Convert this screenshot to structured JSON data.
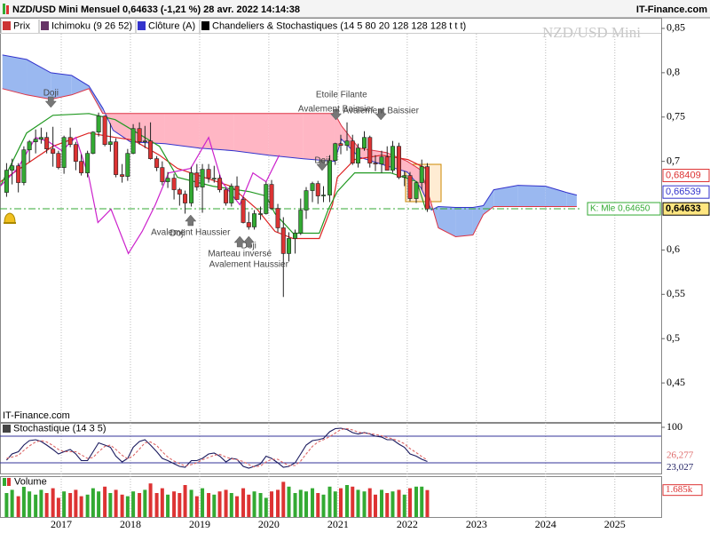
{
  "chart_data": [
    {
      "type": "candlestick",
      "title": "NZD/USD Mini Mensuel 0,64633 (-1,21 %) 28 avr. 2022 14:14:38",
      "source": "IT-Finance.com",
      "watermark": "NZD/USD Mini",
      "legend": [
        {
          "name": "Prix",
          "color": "#cc3333"
        },
        {
          "name": "Ichimoku (9 26 52)",
          "color": "#663366"
        },
        {
          "name": "Clôture (A)",
          "color": "#3333cc"
        },
        {
          "name": "Chandeliers & Stochastiques (14 5 80 20 128 128 128 t t t)",
          "color": "#000000"
        }
      ],
      "x": [
        2016.21,
        2016.29,
        2016.38,
        2016.46,
        2016.54,
        2016.63,
        2016.71,
        2016.79,
        2016.88,
        2016.96,
        2017.04,
        2017.13,
        2017.21,
        2017.29,
        2017.38,
        2017.46,
        2017.54,
        2017.63,
        2017.71,
        2017.79,
        2017.88,
        2017.96,
        2018.04,
        2018.13,
        2018.21,
        2018.29,
        2018.38,
        2018.46,
        2018.54,
        2018.63,
        2018.71,
        2018.79,
        2018.88,
        2018.96,
        2019.04,
        2019.13,
        2019.21,
        2019.29,
        2019.38,
        2019.46,
        2019.54,
        2019.63,
        2019.71,
        2019.79,
        2019.88,
        2019.96,
        2020.04,
        2020.13,
        2020.21,
        2020.29,
        2020.38,
        2020.46,
        2020.54,
        2020.63,
        2020.71,
        2020.79,
        2020.88,
        2020.96,
        2021.04,
        2021.13,
        2021.21,
        2021.29,
        2021.38,
        2021.46,
        2021.54,
        2021.63,
        2021.71,
        2021.79,
        2021.88,
        2021.96,
        2022.04,
        2022.13,
        2022.21,
        2022.29
      ],
      "open": [
        0.665,
        0.69,
        0.695,
        0.676,
        0.713,
        0.722,
        0.725,
        0.727,
        0.714,
        0.709,
        0.693,
        0.727,
        0.719,
        0.7,
        0.687,
        0.709,
        0.733,
        0.751,
        0.719,
        0.722,
        0.685,
        0.683,
        0.709,
        0.737,
        0.722,
        0.723,
        0.703,
        0.693,
        0.677,
        0.681,
        0.668,
        0.663,
        0.653,
        0.687,
        0.671,
        0.691,
        0.681,
        0.681,
        0.668,
        0.653,
        0.672,
        0.657,
        0.631,
        0.626,
        0.641,
        0.641,
        0.674,
        0.647,
        0.625,
        0.596,
        0.613,
        0.619,
        0.645,
        0.667,
        0.675,
        0.661,
        0.662,
        0.701,
        0.72,
        0.718,
        0.723,
        0.698,
        0.715,
        0.727,
        0.698,
        0.697,
        0.705,
        0.69,
        0.717,
        0.682,
        0.684,
        0.658,
        0.676,
        0.694
      ],
      "high": [
        0.698,
        0.703,
        0.698,
        0.717,
        0.724,
        0.736,
        0.738,
        0.733,
        0.739,
        0.712,
        0.729,
        0.738,
        0.722,
        0.708,
        0.712,
        0.734,
        0.755,
        0.752,
        0.743,
        0.726,
        0.697,
        0.714,
        0.742,
        0.744,
        0.74,
        0.744,
        0.706,
        0.7,
        0.688,
        0.686,
        0.67,
        0.667,
        0.694,
        0.697,
        0.697,
        0.697,
        0.695,
        0.685,
        0.67,
        0.675,
        0.683,
        0.66,
        0.643,
        0.645,
        0.649,
        0.677,
        0.679,
        0.652,
        0.637,
        0.62,
        0.623,
        0.658,
        0.671,
        0.677,
        0.678,
        0.672,
        0.707,
        0.721,
        0.73,
        0.744,
        0.73,
        0.72,
        0.734,
        0.729,
        0.707,
        0.712,
        0.717,
        0.723,
        0.721,
        0.689,
        0.688,
        0.677,
        0.702,
        0.698
      ],
      "low": [
        0.66,
        0.674,
        0.665,
        0.673,
        0.699,
        0.709,
        0.72,
        0.709,
        0.694,
        0.691,
        0.686,
        0.716,
        0.69,
        0.684,
        0.682,
        0.708,
        0.728,
        0.717,
        0.711,
        0.682,
        0.676,
        0.678,
        0.708,
        0.719,
        0.715,
        0.702,
        0.689,
        0.673,
        0.67,
        0.657,
        0.65,
        0.641,
        0.649,
        0.667,
        0.642,
        0.676,
        0.676,
        0.665,
        0.65,
        0.649,
        0.657,
        0.63,
        0.623,
        0.623,
        0.634,
        0.64,
        0.645,
        0.62,
        0.547,
        0.587,
        0.596,
        0.617,
        0.635,
        0.654,
        0.652,
        0.654,
        0.654,
        0.696,
        0.708,
        0.712,
        0.696,
        0.693,
        0.712,
        0.693,
        0.689,
        0.687,
        0.69,
        0.687,
        0.68,
        0.672,
        0.655,
        0.653,
        0.668,
        0.643
      ],
      "close": [
        0.69,
        0.695,
        0.676,
        0.713,
        0.722,
        0.725,
        0.727,
        0.714,
        0.709,
        0.693,
        0.727,
        0.719,
        0.7,
        0.687,
        0.709,
        0.733,
        0.751,
        0.719,
        0.722,
        0.685,
        0.683,
        0.709,
        0.737,
        0.722,
        0.723,
        0.703,
        0.693,
        0.677,
        0.681,
        0.668,
        0.663,
        0.653,
        0.687,
        0.671,
        0.691,
        0.681,
        0.681,
        0.668,
        0.653,
        0.672,
        0.657,
        0.631,
        0.626,
        0.641,
        0.641,
        0.674,
        0.647,
        0.625,
        0.596,
        0.613,
        0.619,
        0.645,
        0.667,
        0.675,
        0.661,
        0.662,
        0.701,
        0.72,
        0.718,
        0.723,
        0.698,
        0.715,
        0.727,
        0.698,
        0.697,
        0.705,
        0.69,
        0.717,
        0.682,
        0.684,
        0.658,
        0.676,
        0.694,
        0.64633
      ],
      "up_color": "#33aa33",
      "down_color": "#dd3333",
      "xlim": [
        2016.115,
        2025.67
      ],
      "xticks": [
        2017,
        2018,
        2019,
        2020,
        2021,
        2022,
        2023,
        2024,
        2025
      ],
      "ylim": [
        0.406,
        0.862
      ],
      "yticks": [
        {
          "value": 0.85,
          "label": "0,85"
        },
        {
          "value": 0.8,
          "label": "0,8"
        },
        {
          "value": 0.75,
          "label": "0,75"
        },
        {
          "value": 0.7,
          "label": "0,7"
        },
        {
          "value": 0.6,
          "label": "0,6"
        },
        {
          "value": 0.55,
          "label": "0,55"
        },
        {
          "value": 0.5,
          "label": "0,5"
        },
        {
          "value": 0.45,
          "label": "0,45"
        }
      ],
      "grid": "x",
      "cloud": {
        "x": [
          2016.15,
          2016.5,
          2016.85,
          2017.15,
          2017.4,
          2017.6,
          2017.75,
          2018.0,
          2018.5,
          2019.0,
          2019.5,
          2020.0,
          2020.5,
          2020.95,
          2021.05,
          2021.3,
          2021.7,
          2022.0,
          2022.2,
          2022.35,
          2022.45,
          2022.7,
          2022.95,
          2023.1,
          2023.25,
          2023.6,
          2024.0,
          2024.3,
          2024.45
        ],
        "span_a": [
          0.82,
          0.815,
          0.8,
          0.797,
          0.785,
          0.76,
          0.735,
          0.722,
          0.72,
          0.715,
          0.712,
          0.707,
          0.703,
          0.7,
          0.725,
          0.705,
          0.695,
          0.688,
          0.67,
          0.645,
          0.649,
          0.648,
          0.648,
          0.65,
          0.668,
          0.673,
          0.672,
          0.665,
          0.662
        ],
        "span_b": [
          0.782,
          0.775,
          0.77,
          0.775,
          0.782,
          0.754,
          0.754,
          0.754,
          0.754,
          0.754,
          0.754,
          0.754,
          0.754,
          0.754,
          0.74,
          0.715,
          0.71,
          0.7,
          0.69,
          0.652,
          0.625,
          0.615,
          0.617,
          0.64,
          0.649,
          0.649,
          0.649,
          0.649,
          0.649
        ],
        "bull_color": "#9ab8f0",
        "bear_color": "#ffb6c4",
        "a_color": "#3333cc",
        "b_color": "#dd3344"
      },
      "lines": [
        {
          "color": "#dd2222",
          "x": [
            2016.12,
            2016.5,
            2016.88,
            2017.4,
            2017.78,
            2018.04,
            2018.42,
            2018.68,
            2019.06,
            2019.45,
            2019.83,
            2020.09,
            2020.35,
            2020.73,
            2020.92,
            2020.99,
            2021.24,
            2021.63,
            2022.01,
            2022.27
          ],
          "values": [
            0.677,
            0.697,
            0.717,
            0.732,
            0.727,
            0.724,
            0.707,
            0.692,
            0.682,
            0.672,
            0.646,
            0.621,
            0.613,
            0.613,
            0.651,
            0.682,
            0.702,
            0.707,
            0.702,
            0.692
          ]
        },
        {
          "color": "#229922",
          "x": [
            2016.12,
            2016.5,
            2016.88,
            2017.4,
            2017.78,
            2018.42,
            2018.68,
            2019.19,
            2019.71,
            2019.96,
            2020.09,
            2020.35,
            2020.73,
            2020.86,
            2020.99,
            2021.24,
            2021.76,
            2022.14,
            2022.27
          ],
          "values": [
            0.672,
            0.732,
            0.752,
            0.754,
            0.747,
            0.717,
            0.682,
            0.672,
            0.666,
            0.661,
            0.641,
            0.619,
            0.619,
            0.646,
            0.666,
            0.687,
            0.687,
            0.677,
            0.645
          ]
        },
        {
          "color": "#cc22cc",
          "x": [
            2016.12,
            2016.37,
            2016.63,
            2016.82,
            2017.01,
            2017.21,
            2017.4,
            2017.53,
            2017.72,
            2017.97,
            2018.17,
            2018.36,
            2018.55,
            2018.87,
            2019.13,
            2019.32,
            2019.58,
            2019.77,
            2019.96,
            2020.15
          ],
          "values": [
            0.672,
            0.692,
            0.727,
            0.722,
            0.712,
            0.727,
            0.682,
            0.631,
            0.646,
            0.596,
            0.621,
            0.651,
            0.687,
            0.692,
            0.727,
            0.677,
            0.651,
            0.687,
            0.677,
            0.707
          ]
        }
      ],
      "annotations": [
        {
          "text": "Doji",
          "x": 2016.85
        },
        {
          "text": "Etoile Filante",
          "x": 2021.05
        },
        {
          "text": "Avalement Baissier",
          "x": 2020.97
        },
        {
          "text": "Avalement Baissier",
          "x": 2021.62
        },
        {
          "text": "Doji",
          "x": 2020.77
        },
        {
          "text": "Doji",
          "x": 2018.68
        },
        {
          "text": "Avalement Haussier",
          "x": 2018.87
        },
        {
          "text": "Doji",
          "x": 2019.71
        },
        {
          "text": "Marteau inversé",
          "x": 2019.58
        },
        {
          "text": "Avalement Haussier",
          "x": 2019.71
        }
      ],
      "price_labels": [
        {
          "value": 0.68409,
          "label": "0,68409",
          "color": "#dd3333"
        },
        {
          "value": 0.66539,
          "label": "0,66539",
          "color": "#3333cc"
        },
        {
          "value": 0.64633,
          "label": "0,64633",
          "color": "#000000",
          "fill": "#ffe680"
        }
      ],
      "marker": {
        "value": 0.6465,
        "label": "K: Mle 0,64650",
        "color": "#33aa33"
      }
    },
    {
      "type": "stochastic",
      "title": "Stochastique (14 3 5)",
      "ylim": [
        -4,
        110
      ],
      "yticks": [
        100
      ],
      "levels": [
        80,
        20
      ],
      "level_color": "#333399",
      "series": [
        {
          "color": "#1a1a5e",
          "dash": false,
          "last_label": "23,027",
          "values": [
            26,
            40,
            45,
            60,
            70,
            72,
            68,
            60,
            50,
            40,
            45,
            50,
            40,
            25,
            25,
            45,
            65,
            60,
            55,
            35,
            22,
            30,
            55,
            68,
            72,
            60,
            45,
            30,
            25,
            18,
            12,
            10,
            25,
            25,
            30,
            40,
            42,
            35,
            22,
            30,
            28,
            12,
            8,
            12,
            18,
            35,
            30,
            20,
            10,
            12,
            20,
            40,
            60,
            70,
            72,
            75,
            90,
            97,
            98,
            95,
            88,
            85,
            88,
            85,
            80,
            78,
            72,
            72,
            62,
            55,
            40,
            35,
            28,
            23.027
          ]
        },
        {
          "color": "#dd6666",
          "dash": true,
          "last_label": "26,277",
          "values": [
            30,
            33,
            37,
            48,
            58,
            67,
            70,
            67,
            59,
            50,
            45,
            45,
            45,
            38,
            30,
            32,
            45,
            57,
            60,
            50,
            37,
            29,
            36,
            51,
            65,
            67,
            59,
            45,
            33,
            24,
            18,
            13,
            16,
            20,
            27,
            32,
            37,
            39,
            33,
            29,
            27,
            23,
            16,
            11,
            13,
            22,
            28,
            28,
            20,
            14,
            14,
            24,
            40,
            57,
            67,
            72,
            79,
            87,
            95,
            97,
            94,
            89,
            87,
            86,
            84,
            81,
            77,
            74,
            69,
            63,
            52,
            43,
            34,
            26.277
          ]
        }
      ]
    },
    {
      "type": "volume",
      "title": "Volume",
      "ylim": [
        0,
        2500
      ],
      "last_label": "1.685k",
      "values": [
        1500,
        1700,
        1300,
        1900,
        1600,
        1400,
        1700,
        1500,
        1800,
        1200,
        1600,
        1500,
        1700,
        1300,
        1400,
        1800,
        1600,
        1900,
        1500,
        1700,
        1400,
        1300,
        1600,
        1500,
        1700,
        2100,
        1500,
        1800,
        1400,
        1600,
        1500,
        2000,
        1700,
        1300,
        1800,
        1500,
        1400,
        1600,
        1700,
        1500,
        1300,
        1800,
        1400,
        1600,
        1500,
        1200,
        1600,
        1700,
        2200,
        1900,
        1500,
        1700,
        1600,
        1800,
        1500,
        1400,
        1900,
        1600,
        1800,
        2000,
        1900,
        1700,
        1600,
        1800,
        1400,
        1700,
        1500,
        1600,
        1700,
        1400,
        1800,
        1900,
        1900,
        1685
      ]
    }
  ]
}
